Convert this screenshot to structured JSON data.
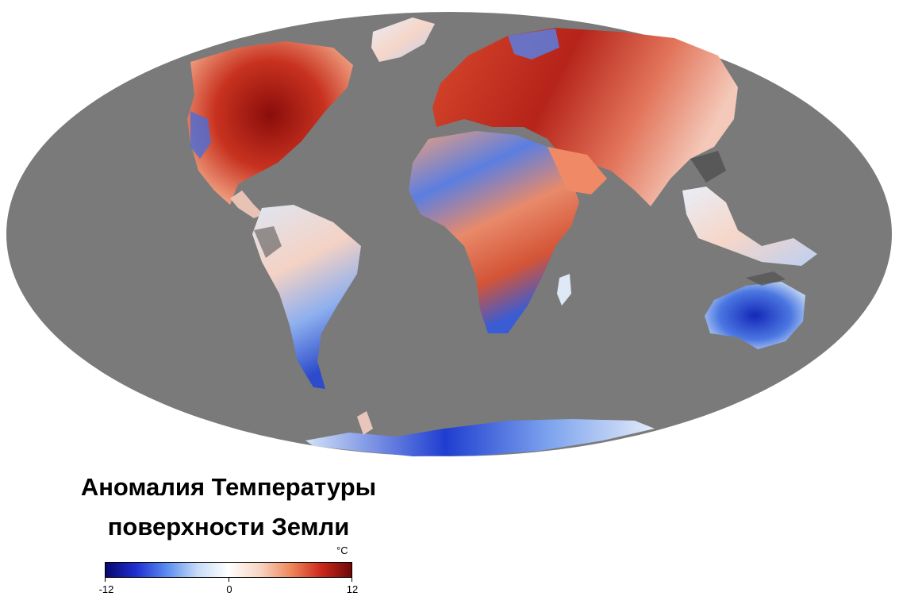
{
  "map": {
    "projection": "mollweide",
    "ocean_color": "#7a7a7a",
    "nodata_color": "#4a4a4a",
    "warm_color": "#b01a12",
    "cool_color": "#1e3ccc"
  },
  "legend": {
    "title_line1": "Аномалия Температуры",
    "title_line2": "поверхности Земли",
    "unit": "°C",
    "min_label": "-12",
    "mid_label": "0",
    "max_label": "12",
    "range": [
      -12,
      12
    ],
    "colors": [
      "#08086e",
      "#1f30d0",
      "#5b8df0",
      "#c7dcf7",
      "#ffffff",
      "#f7d6c4",
      "#ef8a5e",
      "#cc2a1c",
      "#6e0808"
    ]
  }
}
